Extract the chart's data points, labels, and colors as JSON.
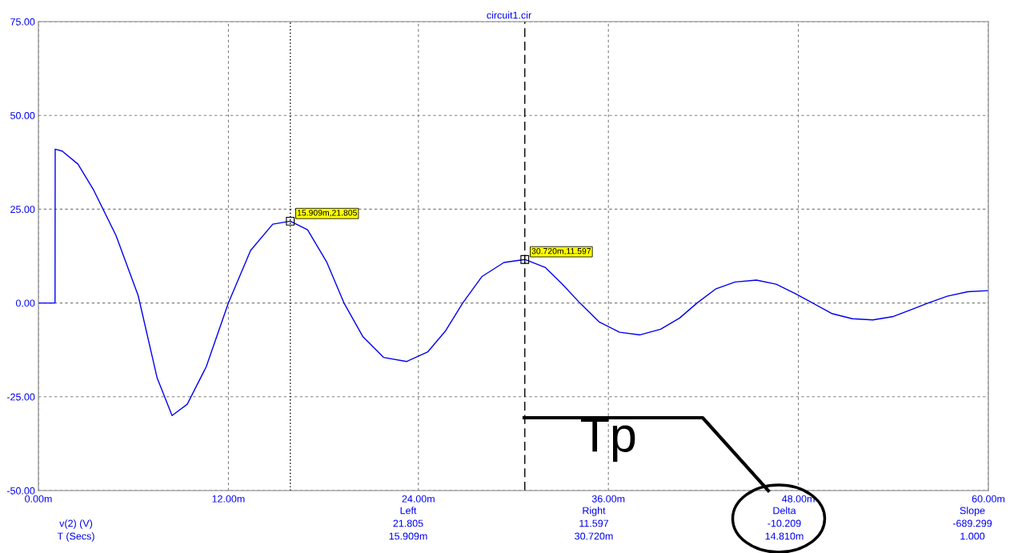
{
  "chart_data": {
    "type": "line",
    "title": "circuit1.cir",
    "series": [
      {
        "color": "#0000f0",
        "x": [
          0,
          1.05,
          1.06,
          1.5,
          2.5,
          3.5,
          4.9,
          6.3,
          7.5,
          8.44,
          9.4,
          10.6,
          12.0,
          13.4,
          14.8,
          15.909,
          17.0,
          18.2,
          19.3,
          20.5,
          21.8,
          23.26,
          24.6,
          25.7,
          26.8,
          28.0,
          29.4,
          30.72,
          32.0,
          33.1,
          34.2,
          35.4,
          36.7,
          38.0,
          39.3,
          40.5,
          41.6,
          42.8,
          44.0,
          45.35,
          46.6,
          47.8,
          48.9,
          50.1,
          51.4,
          52.7,
          54.0,
          55.1,
          56.2,
          57.4,
          58.7,
          60.0
        ],
        "values": [
          0,
          0,
          41,
          40.5,
          37,
          30,
          18,
          2,
          -20,
          -30,
          -27,
          -17,
          0,
          14,
          21,
          21.8,
          19.5,
          11,
          0,
          -9,
          -14.5,
          -15.6,
          -13,
          -7.5,
          0,
          7,
          10.8,
          11.6,
          9.5,
          5,
          0,
          -5,
          -7.8,
          -8.5,
          -7,
          -4,
          0,
          3.8,
          5.6,
          6.1,
          5,
          2.5,
          0,
          -2.8,
          -4.2,
          -4.5,
          -3.6,
          -1.8,
          0,
          1.8,
          3,
          3.3
        ]
      }
    ],
    "xlim": [
      0,
      60
    ],
    "ylim": [
      -50,
      75
    ],
    "xticks": [
      {
        "value": 0,
        "label": "0.00m"
      },
      {
        "value": 12,
        "label": "12.00m"
      },
      {
        "value": 24,
        "label": "24.00m"
      },
      {
        "value": 36,
        "label": "36.00m"
      },
      {
        "value": 48,
        "label": "48.00m"
      },
      {
        "value": 60,
        "label": "60.00m"
      }
    ],
    "yticks": [
      {
        "value": -50,
        "label": "-50.00"
      },
      {
        "value": -25,
        "label": "-25.00"
      },
      {
        "value": 0,
        "label": "0.00"
      },
      {
        "value": 25,
        "label": "25.00"
      },
      {
        "value": 50,
        "label": "50.00"
      },
      {
        "value": 75,
        "label": "75.00"
      }
    ],
    "grid": true,
    "marker": "none",
    "line_style": "solid",
    "legend": false,
    "ref_lines": [
      {
        "axis": "x",
        "value": 15.909,
        "color": "#000000",
        "line_style": "dotted"
      },
      {
        "axis": "x",
        "value": 30.72,
        "color": "#000000",
        "line_style": "dashed"
      }
    ],
    "annotations": [
      {
        "text": "15.909m,21.805",
        "x": 15.909,
        "y": 21.805
      },
      {
        "text": "30.720m,11.597",
        "x": 30.72,
        "y": 11.597
      },
      "Tp",
      "Left",
      "Right",
      "Delta",
      "Slope",
      "v(2) (V)",
      "21.805",
      "11.597",
      "-10.209",
      "-689.299",
      "T (Secs)",
      "15.909m",
      "30.720m",
      "14.810m",
      "1.000"
    ]
  }
}
